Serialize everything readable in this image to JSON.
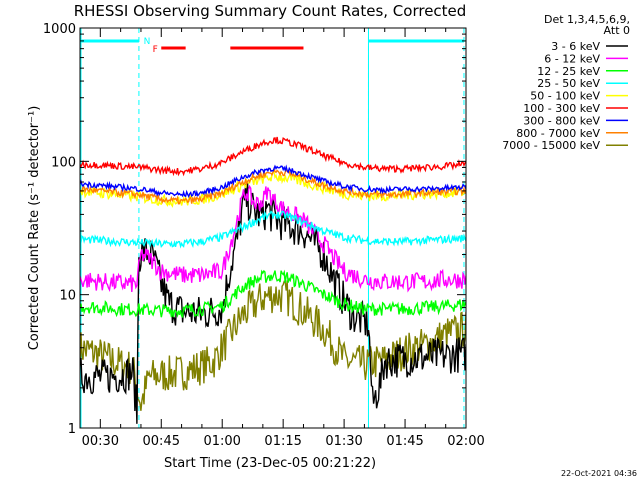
{
  "chart_data": {
    "type": "line",
    "title": "RHESSI Observing Summary Count Rates, Corrected",
    "xlabel": "Start Time (23-Dec-05 00:21:22)",
    "ylabel": "Corrected Count Rate (s⁻¹ detector⁻¹)",
    "y_scale": "log",
    "ylim": [
      1,
      1000
    ],
    "xlim_minutes": [
      25,
      120
    ],
    "x_ticks": [
      {
        "value": 30,
        "label": "00:30"
      },
      {
        "value": 45,
        "label": "00:45"
      },
      {
        "value": 60,
        "label": "01:00"
      },
      {
        "value": 75,
        "label": "01:15"
      },
      {
        "value": 90,
        "label": "01:30"
      },
      {
        "value": 105,
        "label": "01:45"
      },
      {
        "value": 120,
        "label": "02:00"
      }
    ],
    "y_ticks": [
      {
        "value": 1,
        "label": "1"
      },
      {
        "value": 10,
        "label": "10"
      },
      {
        "value": 100,
        "label": "100"
      },
      {
        "value": 1000,
        "label": "1000"
      }
    ],
    "legend": {
      "placement": "right",
      "header": [
        "Det 1,3,4,5,6,9,",
        "Att 0"
      ]
    },
    "series": [
      {
        "name": "3 - 6 keV",
        "color": "#000000",
        "points": [
          [
            25,
            2.5
          ],
          [
            30,
            2.4
          ],
          [
            35,
            2.5
          ],
          [
            38,
            2.6
          ],
          [
            39,
            1.3
          ],
          [
            39.5,
            20
          ],
          [
            41,
            21
          ],
          [
            43,
            19
          ],
          [
            45,
            12
          ],
          [
            47,
            8.5
          ],
          [
            50,
            7.5
          ],
          [
            55,
            7.2
          ],
          [
            58,
            7.5
          ],
          [
            60,
            8
          ],
          [
            62,
            16
          ],
          [
            64,
            28
          ],
          [
            65,
            45
          ],
          [
            66,
            52
          ],
          [
            68,
            42
          ],
          [
            70,
            38
          ],
          [
            71,
            45
          ],
          [
            72,
            40
          ],
          [
            75,
            34
          ],
          [
            80,
            30
          ],
          [
            85,
            20
          ],
          [
            88,
            12
          ],
          [
            90,
            9
          ],
          [
            92,
            7
          ],
          [
            94,
            6.5
          ],
          [
            96,
            6
          ],
          [
            97,
            1.5
          ],
          [
            99,
            2.2
          ],
          [
            100,
            3.2
          ],
          [
            105,
            3.3
          ],
          [
            110,
            3.4
          ],
          [
            115,
            3.5
          ],
          [
            120,
            3.6
          ]
        ]
      },
      {
        "name": "6 - 12 keV",
        "color": "#ff00ff",
        "points": [
          [
            25,
            13
          ],
          [
            30,
            12.5
          ],
          [
            35,
            12.2
          ],
          [
            39,
            12
          ],
          [
            40,
            20
          ],
          [
            42,
            19
          ],
          [
            45,
            15
          ],
          [
            50,
            14
          ],
          [
            55,
            14
          ],
          [
            60,
            15
          ],
          [
            63,
            30
          ],
          [
            65,
            52
          ],
          [
            66,
            60
          ],
          [
            68,
            48
          ],
          [
            70,
            50
          ],
          [
            71,
            60
          ],
          [
            73,
            50
          ],
          [
            75,
            44
          ],
          [
            80,
            36
          ],
          [
            85,
            24
          ],
          [
            88,
            18
          ],
          [
            90,
            15
          ],
          [
            95,
            13
          ],
          [
            100,
            12.5
          ],
          [
            105,
            12.5
          ],
          [
            110,
            12.5
          ],
          [
            115,
            13
          ],
          [
            120,
            13
          ]
        ]
      },
      {
        "name": "12 - 25 keV",
        "color": "#00ff00",
        "points": [
          [
            25,
            8.2
          ],
          [
            30,
            8
          ],
          [
            35,
            7.8
          ],
          [
            40,
            7.7
          ],
          [
            45,
            7.6
          ],
          [
            50,
            7.6
          ],
          [
            55,
            7.8
          ],
          [
            60,
            8.2
          ],
          [
            63,
            10
          ],
          [
            66,
            12
          ],
          [
            70,
            13.5
          ],
          [
            73,
            14
          ],
          [
            76,
            13.5
          ],
          [
            80,
            12
          ],
          [
            85,
            10
          ],
          [
            90,
            8.5
          ],
          [
            95,
            7.8
          ],
          [
            100,
            7.8
          ],
          [
            105,
            7.8
          ],
          [
            110,
            8
          ],
          [
            115,
            8.2
          ],
          [
            120,
            8.5
          ]
        ]
      },
      {
        "name": "25 - 50 keV",
        "color": "#00ffff",
        "points": [
          [
            25,
            26
          ],
          [
            30,
            25.5
          ],
          [
            35,
            25
          ],
          [
            40,
            24.5
          ],
          [
            45,
            24
          ],
          [
            50,
            24
          ],
          [
            55,
            25
          ],
          [
            60,
            27
          ],
          [
            65,
            32
          ],
          [
            70,
            38
          ],
          [
            73,
            40
          ],
          [
            76,
            39
          ],
          [
            80,
            35
          ],
          [
            85,
            30
          ],
          [
            90,
            27
          ],
          [
            95,
            25.5
          ],
          [
            100,
            25
          ],
          [
            105,
            25
          ],
          [
            110,
            25.5
          ],
          [
            115,
            26
          ],
          [
            120,
            26.5
          ]
        ]
      },
      {
        "name": "50 - 100 keV",
        "color": "#ffff00",
        "points": [
          [
            25,
            60
          ],
          [
            30,
            58
          ],
          [
            35,
            56
          ],
          [
            40,
            54
          ],
          [
            45,
            51
          ],
          [
            50,
            50
          ],
          [
            55,
            52
          ],
          [
            60,
            57
          ],
          [
            65,
            66
          ],
          [
            70,
            74
          ],
          [
            73,
            77
          ],
          [
            76,
            75
          ],
          [
            80,
            70
          ],
          [
            85,
            63
          ],
          [
            90,
            57
          ],
          [
            95,
            55
          ],
          [
            100,
            55
          ],
          [
            105,
            56
          ],
          [
            110,
            57
          ],
          [
            115,
            58
          ],
          [
            120,
            59
          ]
        ]
      },
      {
        "name": "100 - 300 keV",
        "color": "#ff0000",
        "points": [
          [
            25,
            95
          ],
          [
            30,
            94
          ],
          [
            35,
            92
          ],
          [
            40,
            90
          ],
          [
            45,
            86
          ],
          [
            50,
            84
          ],
          [
            55,
            88
          ],
          [
            60,
            98
          ],
          [
            65,
            118
          ],
          [
            70,
            138
          ],
          [
            73,
            145
          ],
          [
            76,
            140
          ],
          [
            80,
            128
          ],
          [
            85,
            110
          ],
          [
            90,
            97
          ],
          [
            95,
            90
          ],
          [
            100,
            88
          ],
          [
            105,
            88
          ],
          [
            110,
            90
          ],
          [
            115,
            92
          ],
          [
            120,
            95
          ]
        ]
      },
      {
        "name": "300 - 800 keV",
        "color": "#0000ff",
        "points": [
          [
            25,
            68
          ],
          [
            30,
            66
          ],
          [
            35,
            64
          ],
          [
            40,
            62
          ],
          [
            45,
            58
          ],
          [
            50,
            56
          ],
          [
            55,
            58
          ],
          [
            60,
            64
          ],
          [
            65,
            76
          ],
          [
            70,
            86
          ],
          [
            73,
            89
          ],
          [
            76,
            87
          ],
          [
            80,
            80
          ],
          [
            85,
            71
          ],
          [
            90,
            65
          ],
          [
            95,
            62
          ],
          [
            100,
            61
          ],
          [
            105,
            62
          ],
          [
            110,
            62
          ],
          [
            115,
            63
          ],
          [
            120,
            64
          ]
        ]
      },
      {
        "name": "800 - 7000 keV",
        "color": "#ff8000",
        "points": [
          [
            25,
            62
          ],
          [
            30,
            60
          ],
          [
            35,
            58
          ],
          [
            40,
            56
          ],
          [
            45,
            52
          ],
          [
            50,
            50
          ],
          [
            55,
            52
          ],
          [
            60,
            58
          ],
          [
            65,
            70
          ],
          [
            70,
            80
          ],
          [
            73,
            84
          ],
          [
            76,
            82
          ],
          [
            80,
            75
          ],
          [
            85,
            66
          ],
          [
            90,
            60
          ],
          [
            95,
            57
          ],
          [
            100,
            56
          ],
          [
            105,
            57
          ],
          [
            110,
            58
          ],
          [
            115,
            59
          ],
          [
            120,
            60
          ]
        ]
      },
      {
        "name": "7000 - 15000 keV",
        "color": "#808000",
        "points": [
          [
            25,
            4
          ],
          [
            30,
            3.5
          ],
          [
            35,
            3
          ],
          [
            38,
            2.8
          ],
          [
            40,
            1.5
          ],
          [
            42,
            2.4
          ],
          [
            45,
            2.5
          ],
          [
            50,
            2.6
          ],
          [
            55,
            2.9
          ],
          [
            58,
            3.2
          ],
          [
            60,
            4
          ],
          [
            62,
            5
          ],
          [
            65,
            7
          ],
          [
            70,
            9.5
          ],
          [
            73,
            10
          ],
          [
            76,
            9.5
          ],
          [
            80,
            7.5
          ],
          [
            85,
            5.5
          ],
          [
            88,
            4
          ],
          [
            90,
            3.2
          ],
          [
            95,
            3
          ],
          [
            100,
            3.2
          ],
          [
            105,
            3.8
          ],
          [
            110,
            4.2
          ],
          [
            115,
            5
          ],
          [
            120,
            5.6
          ]
        ]
      }
    ],
    "markers": {
      "cyan_bars": [
        [
          25,
          39.5
        ],
        [
          96,
          119.5
        ]
      ],
      "red_bars": [
        [
          45,
          51
        ],
        [
          62,
          80
        ]
      ],
      "dashed_cyan_lines": [
        39.5,
        96,
        119.5
      ],
      "labels": [
        {
          "text": "F",
          "x": 43.5,
          "color": "#ff0000"
        },
        {
          "text": "N",
          "x": 41.5,
          "color": "#00ffff"
        }
      ]
    }
  },
  "footer_date": "22-Oct-2021 04:36"
}
